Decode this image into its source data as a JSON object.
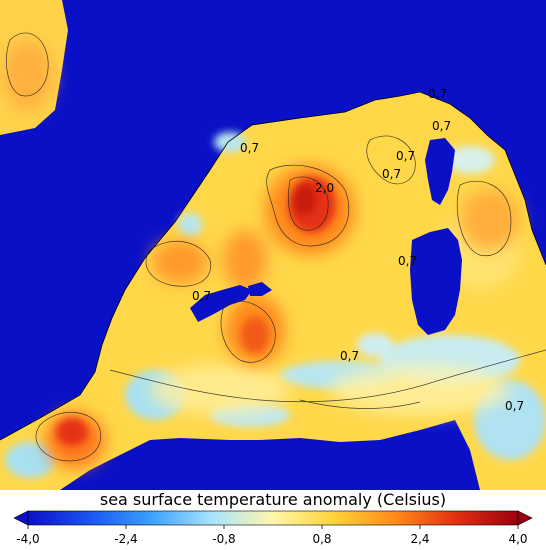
{
  "map": {
    "contour_labels": [
      "0,7",
      "0,7",
      "0,7",
      "0,7",
      "2,0",
      "0,7",
      "0,7",
      "0,7",
      "0,7",
      "0,7"
    ]
  },
  "colorbar": {
    "title": "sea surface temperature anomaly (Celsius)",
    "min": -4.0,
    "max": 4.0,
    "tick_labels": [
      "-4,0",
      "-2,4",
      "-0,8",
      "0,8",
      "2,4",
      "4,0"
    ],
    "tick_values": [
      -4.0,
      -2.4,
      -0.8,
      0.8,
      2.4,
      4.0
    ],
    "colors": [
      "#0b0fc8",
      "#1a55f0",
      "#3aa0ff",
      "#a8e4ff",
      "#fff6a8",
      "#ffd23a",
      "#ff8a1a",
      "#e03010",
      "#9a0010"
    ]
  },
  "colors": {
    "land": "#0a10c6",
    "sea_base": "#ffd84a"
  }
}
